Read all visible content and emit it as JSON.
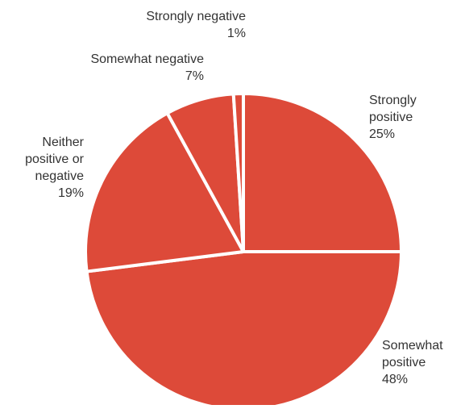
{
  "chart_data": {
    "type": "pie",
    "title": "",
    "start_angle_deg": 0,
    "direction": "clockwise",
    "color": "#DD4A39",
    "separator_color": "#ffffff",
    "slices": [
      {
        "label": [
          "Strongly",
          "positive"
        ],
        "value": 25,
        "value_label": "25%"
      },
      {
        "label": [
          "Somewhat",
          "positive"
        ],
        "value": 48,
        "value_label": "48%"
      },
      {
        "label": [
          "Neither",
          "positive or",
          "negative"
        ],
        "value": 19,
        "value_label": "19%"
      },
      {
        "label": [
          "Somewhat negative"
        ],
        "value": 7,
        "value_label": "7%"
      },
      {
        "label": [
          "Strongly negative"
        ],
        "value": 1,
        "value_label": "1%"
      }
    ]
  }
}
